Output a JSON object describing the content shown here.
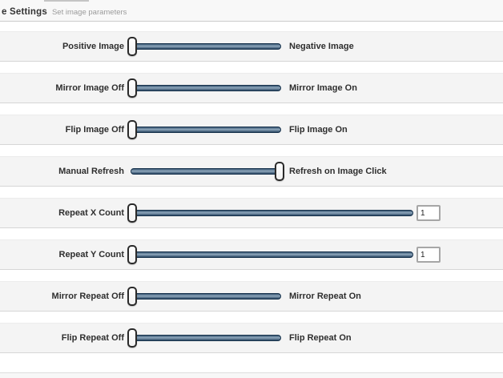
{
  "header": {
    "title": "e Settings",
    "subtitle": "Set image parameters"
  },
  "rows": [
    {
      "left_label": "Positive Image",
      "right_label": "Negative Image",
      "control": "flip-switch",
      "handle_position": "left"
    },
    {
      "left_label": "Mirror Image Off",
      "right_label": "Mirror Image On",
      "control": "flip-switch",
      "handle_position": "left"
    },
    {
      "left_label": "Flip Image Off",
      "right_label": "Flip Image On",
      "control": "flip-switch",
      "handle_position": "left"
    },
    {
      "left_label": "Manual Refresh",
      "right_label": "Refresh on Image Click",
      "control": "flip-switch",
      "handle_position": "right"
    },
    {
      "left_label": "Repeat X Count",
      "control": "slider-with-input",
      "handle_position": "left",
      "value": "1"
    },
    {
      "left_label": "Repeat Y Count",
      "control": "slider-with-input",
      "handle_position": "left",
      "value": "1"
    },
    {
      "left_label": "Mirror Repeat Off",
      "right_label": "Mirror Repeat On",
      "control": "flip-switch",
      "handle_position": "left"
    },
    {
      "left_label": "Flip Repeat Off",
      "right_label": "Flip Repeat On",
      "control": "flip-switch",
      "handle_position": "left"
    }
  ],
  "colors": {
    "track_dark": "#2b4763",
    "track_light": "#8fa8bc",
    "track_border": "#16314b",
    "handle_border": "#2a2a2a",
    "row_background": "#f4f4f4",
    "header_background": "#f8f8f8",
    "label_text": "#2e2e2e"
  }
}
